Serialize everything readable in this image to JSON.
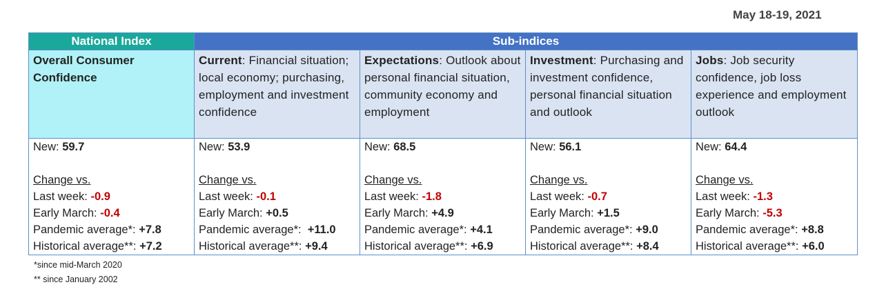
{
  "date": "May 18-19, 2021",
  "header": {
    "national": "National Index",
    "sub": "Sub-indices"
  },
  "columns": [
    {
      "title": "Overall Consumer Confidence",
      "desc": "",
      "new_label": "New:",
      "new_value": "59.7",
      "change_label": "Change vs.",
      "last_week_label": "Last week:",
      "last_week": "-0.9",
      "early_march_label": "Early March:",
      "early_march": "-0.4",
      "pandemic_label": "Pandemic average*:",
      "pandemic": "+7.8",
      "historical_label": "Historical average**:",
      "historical": "+7.2"
    },
    {
      "title": "Current",
      "desc": ":  Financial situation; local economy; purchasing, employment and investment confidence",
      "new_label": "New:",
      "new_value": "53.9",
      "change_label": "Change vs.",
      "last_week_label": "Last week:",
      "last_week": "-0.1",
      "early_march_label": "Early March:",
      "early_march": "+0.5",
      "pandemic_label": "Pandemic average*:",
      "pandemic": "+11.0",
      "historical_label": "Historical average**:",
      "historical": "+9.4"
    },
    {
      "title": "Expectations",
      "desc": ":  Outlook about personal financial situation, community economy and employment",
      "new_label": "New:",
      "new_value": "68.5",
      "change_label": "Change vs.",
      "last_week_label": "Last week:",
      "last_week": "-1.8",
      "early_march_label": "Early March:",
      "early_march": "+4.9",
      "pandemic_label": "Pandemic average*:",
      "pandemic": "+4.1",
      "historical_label": "Historical average**:",
      "historical": "+6.9"
    },
    {
      "title": "Investment",
      "desc": ": Purchasing and investment confidence, personal financial situation and outlook",
      "new_label": "New:",
      "new_value": "56.1",
      "change_label": "Change vs.",
      "last_week_label": "Last week:",
      "last_week": "-0.7",
      "early_march_label": "Early March:",
      "early_march": "+1.5",
      "pandemic_label": "Pandemic average*:",
      "pandemic": "+9.0",
      "historical_label": "Historical average**:",
      "historical": "+8.4"
    },
    {
      "title": "Jobs",
      "desc": ": Job security confidence, job loss experience and employment outlook",
      "new_label": "New:",
      "new_value": "64.4",
      "change_label": "Change vs.",
      "last_week_label": "Last week:",
      "last_week": "-1.3",
      "early_march_label": "Early March:",
      "early_march": "-5.3",
      "pandemic_label": "Pandemic average*:",
      "pandemic": "+8.8",
      "historical_label": "Historical average**:",
      "historical": "+6.0"
    }
  ],
  "footnotes": [
    "*since mid-March 2020",
    "** since January 2002"
  ],
  "colors": {
    "national_header": "#1aa89c",
    "sub_header": "#4472c4",
    "national_desc": "#b0f2f7",
    "sub_desc": "#d9e3f2",
    "negative": "#c00000",
    "border": "#5b8fc7"
  }
}
